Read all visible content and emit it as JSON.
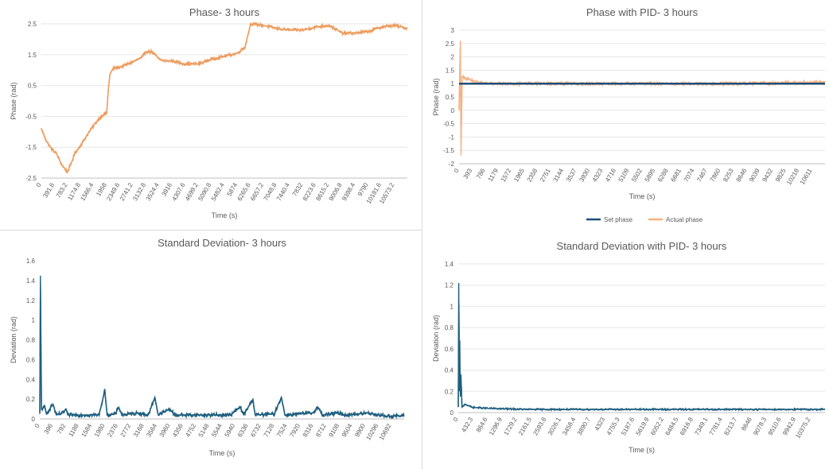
{
  "chart_data": [
    {
      "id": "c1",
      "type": "line",
      "title": "Phase- 3 hours",
      "xlabel": "Time (s)",
      "ylabel": "Phase (rad)",
      "xlim": [
        0,
        10960
      ],
      "ylim": [
        -2.5,
        2.5
      ],
      "y_ticks": [
        "2.5",
        "1.5",
        "0.5",
        "-0.5",
        "-1.5",
        "-2.5"
      ],
      "x_ticks": [
        "0",
        "391.6",
        "783.2",
        "1174.8",
        "1566.4",
        "1958",
        "2349.6",
        "2741.2",
        "3132.8",
        "3524.4",
        "3916",
        "4307.6",
        "4699.2",
        "5090.8",
        "5482.4",
        "5874",
        "6265.6",
        "6657.2",
        "7048.8",
        "7440.4",
        "7832",
        "8223.6",
        "8615.2",
        "9006.8",
        "9398.4",
        "9790",
        "10181.6",
        "10573.2"
      ],
      "grid": true,
      "legend": "none",
      "series": [
        {
          "color": "#ED9B5D",
          "noise": 0.05,
          "points": [
            [
              0,
              -0.9
            ],
            [
              150,
              -1.3
            ],
            [
              300,
              -1.55
            ],
            [
              450,
              -1.7
            ],
            [
              600,
              -2.05
            ],
            [
              700,
              -2.2
            ],
            [
              783,
              -2.3
            ],
            [
              900,
              -2.0
            ],
            [
              1000,
              -1.7
            ],
            [
              1200,
              -1.4
            ],
            [
              1400,
              -1.05
            ],
            [
              1566,
              -0.8
            ],
            [
              1700,
              -0.6
            ],
            [
              1850,
              -0.45
            ],
            [
              1958,
              -0.4
            ],
            [
              2000,
              0.3
            ],
            [
              2050,
              0.85
            ],
            [
              2150,
              1.05
            ],
            [
              2349,
              1.1
            ],
            [
              2600,
              1.2
            ],
            [
              2800,
              1.3
            ],
            [
              3000,
              1.4
            ],
            [
              3132,
              1.6
            ],
            [
              3300,
              1.6
            ],
            [
              3450,
              1.45
            ],
            [
              3524,
              1.35
            ],
            [
              3700,
              1.3
            ],
            [
              3916,
              1.3
            ],
            [
              4300,
              1.2
            ],
            [
              4700,
              1.2
            ],
            [
              5090,
              1.35
            ],
            [
              5482,
              1.45
            ],
            [
              5874,
              1.55
            ],
            [
              6100,
              1.75
            ],
            [
              6200,
              2.2
            ],
            [
              6265,
              2.5
            ],
            [
              6657,
              2.45
            ],
            [
              7048,
              2.35
            ],
            [
              7440,
              2.3
            ],
            [
              7832,
              2.3
            ],
            [
              8223,
              2.4
            ],
            [
              8615,
              2.45
            ],
            [
              9006,
              2.2
            ],
            [
              9398,
              2.2
            ],
            [
              9790,
              2.25
            ],
            [
              10181,
              2.4
            ],
            [
              10573,
              2.45
            ],
            [
              10960,
              2.35
            ]
          ]
        }
      ]
    },
    {
      "id": "c2",
      "type": "line",
      "title": "Phase with PID- 3 hours",
      "xlabel": "Time (s)",
      "ylabel": "Phase (rad)",
      "xlim": [
        0,
        11000
      ],
      "ylim": [
        -2,
        3
      ],
      "y_ticks": [
        "3",
        "2.5",
        "2",
        "1.5",
        "1",
        "0.5",
        "0",
        "-0.5",
        "-1",
        "-1.5",
        "-2"
      ],
      "x_ticks": [
        "0",
        "393",
        "786",
        "1179",
        "1572",
        "1965",
        "2358",
        "2751",
        "3144",
        "3537",
        "3930",
        "4323",
        "4716",
        "5109",
        "5502",
        "5895",
        "6288",
        "6681",
        "7074",
        "7467",
        "7860",
        "8253",
        "8646",
        "9039",
        "9432",
        "9825",
        "10218",
        "10611"
      ],
      "grid": true,
      "legend": "bottom",
      "series": [
        {
          "name": "Set phase",
          "color": "#1F4E79",
          "noise": 0.0,
          "points": [
            [
              0,
              1.0
            ],
            [
              11000,
              1.0
            ]
          ]
        },
        {
          "name": "Actual phase",
          "color": "#F4B183",
          "noise": 0.06,
          "points": [
            [
              0,
              0.0
            ],
            [
              40,
              2.6
            ],
            [
              60,
              -1.7
            ],
            [
              90,
              1.25
            ],
            [
              200,
              1.2
            ],
            [
              400,
              1.1
            ],
            [
              800,
              1.0
            ],
            [
              1600,
              1.0
            ],
            [
              4000,
              1.0
            ],
            [
              8000,
              1.0
            ],
            [
              11000,
              1.05
            ]
          ]
        }
      ]
    },
    {
      "id": "c3",
      "type": "line",
      "title": "Standard Deviation- 3 hours",
      "xlabel": "Time (s)",
      "ylabel": "Deviation (rad)",
      "xlim": [
        0,
        11080
      ],
      "ylim": [
        0,
        1.6
      ],
      "y_ticks": [
        "1.6",
        "1.4",
        "1.2",
        "1",
        "0.8",
        "0.6",
        "0.4",
        "0.2",
        "0"
      ],
      "x_ticks": [
        "0",
        "396",
        "792",
        "1188",
        "1584",
        "1980",
        "2376",
        "2772",
        "3168",
        "3564",
        "3960",
        "4356",
        "4752",
        "5148",
        "5544",
        "5940",
        "6336",
        "6732",
        "7128",
        "7524",
        "7920",
        "8316",
        "8712",
        "9108",
        "9504",
        "9900",
        "10296",
        "10692"
      ],
      "grid": false,
      "legend": "none",
      "series": [
        {
          "color": "#1F5F7F",
          "noise": 0.02,
          "points": [
            [
              0,
              0.05
            ],
            [
              20,
              1.45
            ],
            [
              50,
              0.1
            ],
            [
              150,
              0.12
            ],
            [
              200,
              0.05
            ],
            [
              400,
              0.15
            ],
            [
              500,
              0.04
            ],
            [
              700,
              0.06
            ],
            [
              800,
              0.1
            ],
            [
              850,
              0.04
            ],
            [
              1800,
              0.04
            ],
            [
              1980,
              0.29
            ],
            [
              2050,
              0.04
            ],
            [
              2300,
              0.05
            ],
            [
              2400,
              0.12
            ],
            [
              2500,
              0.04
            ],
            [
              3000,
              0.06
            ],
            [
              3300,
              0.04
            ],
            [
              3500,
              0.22
            ],
            [
              3600,
              0.04
            ],
            [
              3960,
              0.1
            ],
            [
              4100,
              0.04
            ],
            [
              5800,
              0.04
            ],
            [
              6100,
              0.12
            ],
            [
              6200,
              0.04
            ],
            [
              6480,
              0.2
            ],
            [
              6550,
              0.04
            ],
            [
              7128,
              0.05
            ],
            [
              7350,
              0.22
            ],
            [
              7450,
              0.04
            ],
            [
              8300,
              0.06
            ],
            [
              8450,
              0.12
            ],
            [
              8600,
              0.04
            ],
            [
              9100,
              0.06
            ],
            [
              9300,
              0.04
            ],
            [
              10000,
              0.06
            ],
            [
              10500,
              0.03
            ],
            [
              11080,
              0.03
            ]
          ]
        }
      ]
    },
    {
      "id": "c4",
      "type": "line",
      "title": "Standard Deviation with PID- 3 hours",
      "xlabel": "Time (s)",
      "ylabel": "Deviation (rad)",
      "xlim": [
        0,
        10800
      ],
      "ylim": [
        0,
        1.4
      ],
      "y_ticks": [
        "1.4",
        "1.2",
        "1",
        "0.8",
        "0.6",
        "0.4",
        "0.2",
        "0"
      ],
      "x_ticks": [
        "0",
        "432.3",
        "864.6",
        "1296.9",
        "1729.2",
        "2161.5",
        "2593.8",
        "3026.1",
        "3458.4",
        "3890.7",
        "4323",
        "4755.3",
        "5187.6",
        "5619.9",
        "6052.2",
        "6484.5",
        "6916.8",
        "7349.1",
        "7781.4",
        "8213.7",
        "8646",
        "9078.3",
        "9510.6",
        "9942.9",
        "10375.2"
      ],
      "grid": true,
      "legend": "none",
      "series": [
        {
          "color": "#1F5F7F",
          "noise": 0.008,
          "points": [
            [
              0,
              0.05
            ],
            [
              15,
              1.22
            ],
            [
              30,
              0.2
            ],
            [
              45,
              0.68
            ],
            [
              60,
              0.15
            ],
            [
              80,
              0.36
            ],
            [
              110,
              0.05
            ],
            [
              200,
              0.08
            ],
            [
              400,
              0.05
            ],
            [
              864,
              0.04
            ],
            [
              2000,
              0.03
            ],
            [
              5000,
              0.03
            ],
            [
              8000,
              0.03
            ],
            [
              10800,
              0.03
            ]
          ]
        }
      ]
    }
  ]
}
